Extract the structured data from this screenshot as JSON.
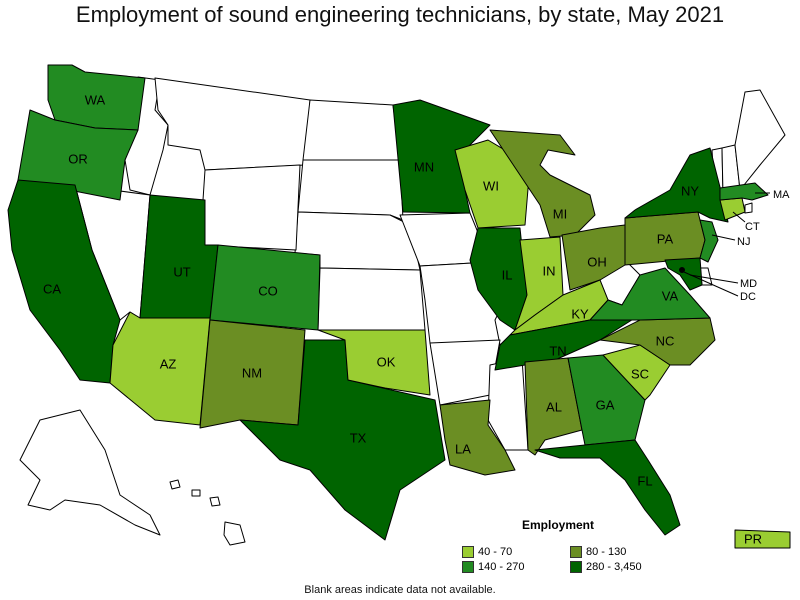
{
  "title": "Employment of sound engineering technicians, by state, May 2021",
  "legend": {
    "title": "Employment",
    "items": [
      {
        "label": "40 - 70",
        "color": "#9acd32"
      },
      {
        "label": "80 - 130",
        "color": "#6b8e23"
      },
      {
        "label": "140 - 270",
        "color": "#228b22"
      },
      {
        "label": "280 - 3,450",
        "color": "#006400"
      }
    ]
  },
  "note": "Blank areas indicate data not available.",
  "colors": {
    "none": "#ffffff",
    "c1": "#9acd32",
    "c2": "#6b8e23",
    "c3": "#228b22",
    "c4": "#006400"
  },
  "states": [
    {
      "abbr": "WA",
      "cls": "c3"
    },
    {
      "abbr": "OR",
      "cls": "c3"
    },
    {
      "abbr": "CA",
      "cls": "c4"
    },
    {
      "abbr": "UT",
      "cls": "c4"
    },
    {
      "abbr": "CO",
      "cls": "c3"
    },
    {
      "abbr": "AZ",
      "cls": "c1"
    },
    {
      "abbr": "NM",
      "cls": "c2"
    },
    {
      "abbr": "TX",
      "cls": "c4"
    },
    {
      "abbr": "OK",
      "cls": "c1"
    },
    {
      "abbr": "MN",
      "cls": "c4"
    },
    {
      "abbr": "WI",
      "cls": "c1"
    },
    {
      "abbr": "IL",
      "cls": "c4"
    },
    {
      "abbr": "MI",
      "cls": "c2"
    },
    {
      "abbr": "IN",
      "cls": "c1"
    },
    {
      "abbr": "OH",
      "cls": "c2"
    },
    {
      "abbr": "KY",
      "cls": "c1"
    },
    {
      "abbr": "TN",
      "cls": "c4"
    },
    {
      "abbr": "LA",
      "cls": "c2"
    },
    {
      "abbr": "AL",
      "cls": "c2"
    },
    {
      "abbr": "GA",
      "cls": "c3"
    },
    {
      "abbr": "FL",
      "cls": "c4"
    },
    {
      "abbr": "SC",
      "cls": "c1"
    },
    {
      "abbr": "NC",
      "cls": "c2"
    },
    {
      "abbr": "VA",
      "cls": "c3"
    },
    {
      "abbr": "PA",
      "cls": "c2"
    },
    {
      "abbr": "NY",
      "cls": "c4"
    },
    {
      "abbr": "NJ",
      "cls": "c3"
    },
    {
      "abbr": "MD",
      "cls": "c4"
    },
    {
      "abbr": "DC",
      "cls": "c4"
    },
    {
      "abbr": "CT",
      "cls": "c1"
    },
    {
      "abbr": "MA",
      "cls": "c3"
    },
    {
      "abbr": "PR",
      "cls": "c1"
    }
  ]
}
